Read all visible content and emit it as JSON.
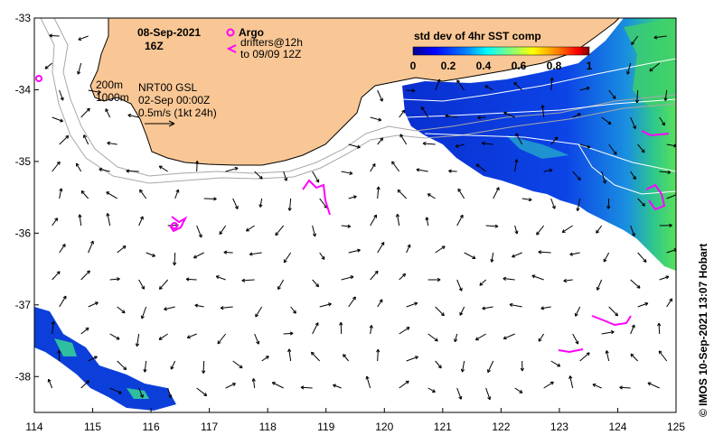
{
  "map": {
    "date": "08-Sep-2021",
    "hour": "16Z",
    "legend_argo_label": "Argo",
    "legend_drifters_label": "drifters@12h",
    "legend_drifters_label2": "to 09/09 12Z",
    "depth_label_1": "200m",
    "depth_label_2": "1000m",
    "model_label": "NRT00 GSL",
    "model_date": "02-Sep 00:00Z",
    "scale_label": "0.5m/s (1kt 24h)",
    "colorbar_title": "std dev of 4hr SST comp",
    "colorbar_ticks": [
      "0",
      "0.2",
      "0.4",
      "0.6",
      "0.8",
      "1"
    ],
    "colorbar_colors": [
      "#00008f",
      "#0000ff",
      "#0080ff",
      "#00ffff",
      "#80ff80",
      "#ffff00",
      "#ff8000",
      "#ff0000",
      "#800000"
    ],
    "credit": "© IMOS 10-Sep-2021 13:07 Hobart",
    "x_ticks": [
      "114",
      "115",
      "116",
      "117",
      "118",
      "119",
      "120",
      "121",
      "122",
      "123",
      "124",
      "125"
    ],
    "y_ticks": [
      "-33",
      "-34",
      "-35",
      "-36",
      "-37",
      "-38"
    ],
    "lon_range": [
      114,
      125
    ],
    "lat_range": [
      -38.5,
      -33
    ],
    "land_color": "#f9c795",
    "marker_color": "#ff00ff"
  }
}
